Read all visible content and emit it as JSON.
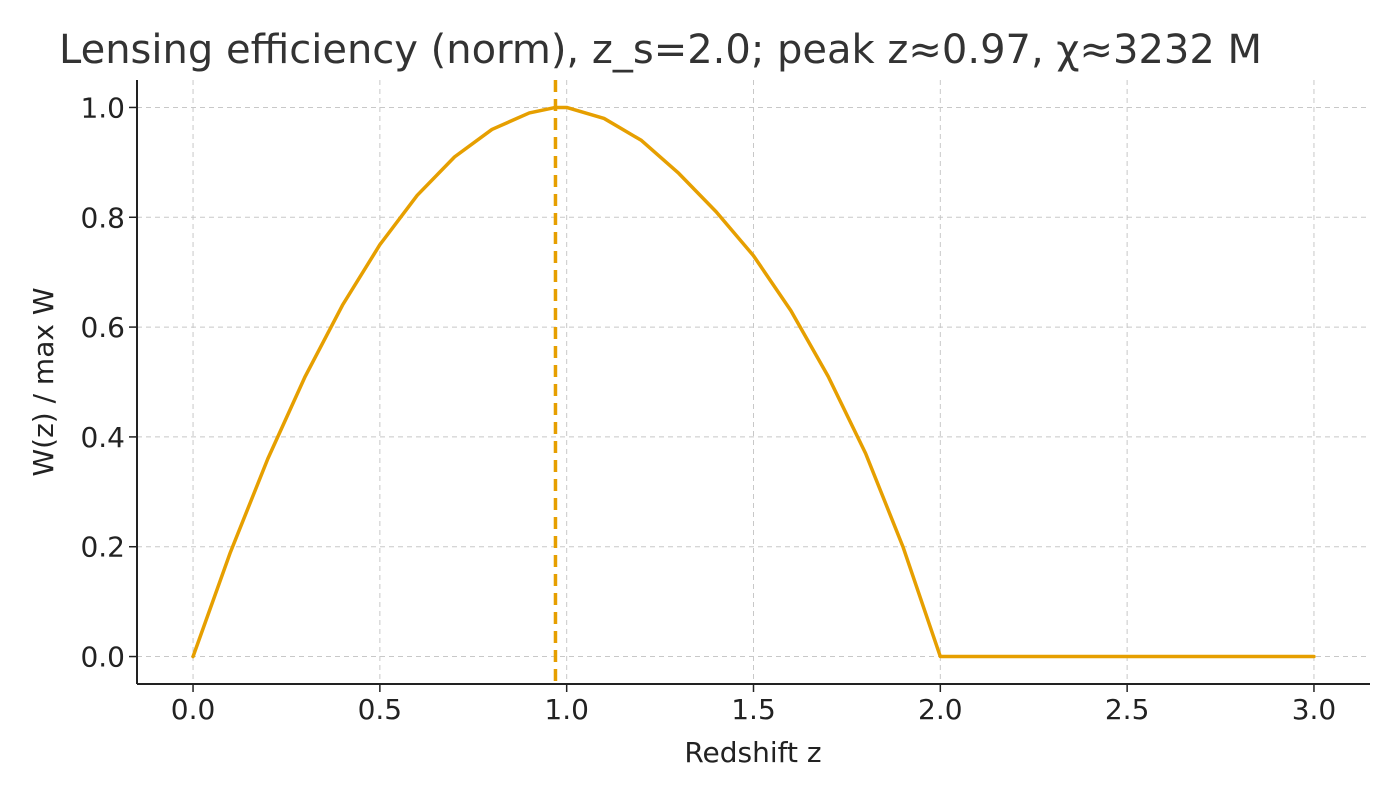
{
  "chart_data": {
    "type": "line",
    "title": "Lensing efficiency (norm), z_s=2.0; peak z≈0.97, χ≈3232 M",
    "xlabel": "Redshift z",
    "ylabel": "W(z) / max W",
    "xlim": [
      -0.15,
      3.15
    ],
    "ylim": [
      -0.05,
      1.05
    ],
    "xticks": [
      0.0,
      0.5,
      1.0,
      1.5,
      2.0,
      2.5,
      3.0
    ],
    "xtick_labels": [
      "0.0",
      "0.5",
      "1.0",
      "1.5",
      "2.0",
      "2.5",
      "3.0"
    ],
    "yticks": [
      0.0,
      0.2,
      0.4,
      0.6,
      0.8,
      1.0
    ],
    "ytick_labels": [
      "0.0",
      "0.2",
      "0.4",
      "0.6",
      "0.8",
      "1.0"
    ],
    "grid": true,
    "line_color": "#E69F00",
    "series": [
      {
        "x": [
          0.0,
          0.1,
          0.2,
          0.3,
          0.4,
          0.5,
          0.6,
          0.7,
          0.8,
          0.9,
          0.97,
          1.0,
          1.1,
          1.2,
          1.3,
          1.4,
          1.5,
          1.6,
          1.7,
          1.8,
          1.9,
          2.0,
          2.5,
          3.0
        ],
        "y": [
          0.0,
          0.19,
          0.36,
          0.51,
          0.64,
          0.75,
          0.84,
          0.91,
          0.96,
          0.99,
          1.0,
          1.0,
          0.98,
          0.94,
          0.88,
          0.81,
          0.73,
          0.63,
          0.51,
          0.37,
          0.2,
          0.0,
          0.0,
          0.0
        ]
      }
    ],
    "peak_marker": {
      "x": 0.97,
      "style": "dashed"
    }
  }
}
